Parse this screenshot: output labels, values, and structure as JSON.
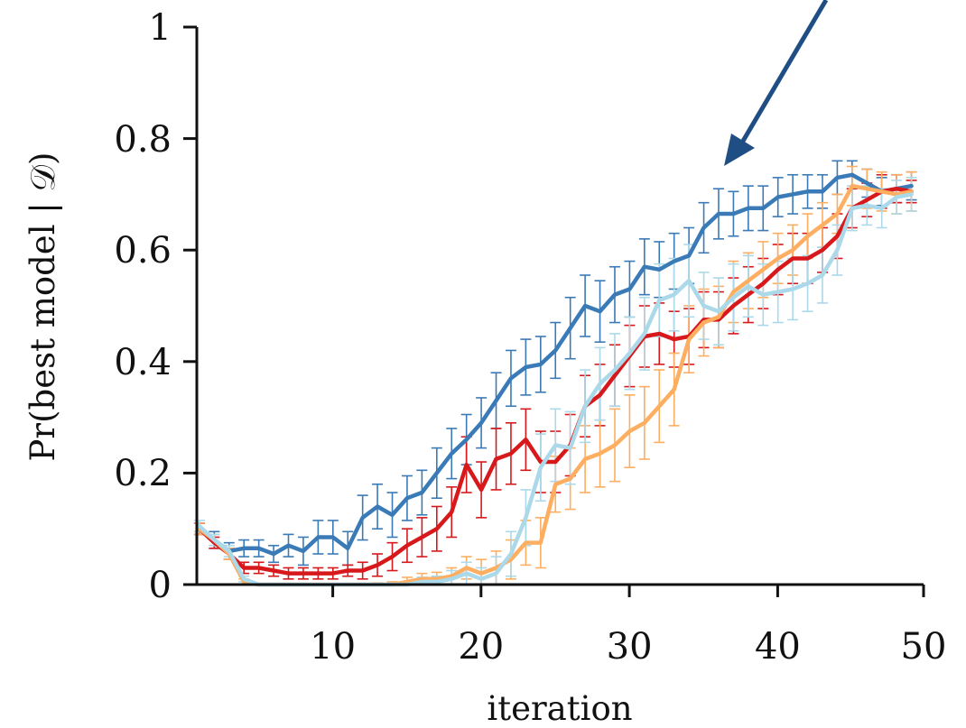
{
  "chart_data": {
    "type": "line",
    "title": "",
    "xlabel": "iteration",
    "ylabel": "Pr(best model | 𝒟)",
    "xlim": [
      1,
      50
    ],
    "ylim": [
      0,
      1
    ],
    "xticks": [
      10,
      20,
      30,
      40,
      50
    ],
    "xtick_labels": [
      "10",
      "20",
      "30",
      "40",
      "50"
    ],
    "yticks": [
      0,
      0.2,
      0.4,
      0.6,
      0.8,
      1
    ],
    "ytick_labels": [
      "0",
      "0.2",
      "0.4",
      "0.6",
      "0.8",
      "1"
    ],
    "grid": false,
    "legend": "none",
    "error_bars": true,
    "annotation": "arrow pointing at the dark blue curve near iteration 37",
    "x": [
      1,
      2,
      3,
      4,
      5,
      6,
      7,
      8,
      9,
      10,
      11,
      12,
      13,
      14,
      15,
      16,
      17,
      18,
      19,
      20,
      21,
      22,
      23,
      24,
      25,
      26,
      27,
      28,
      29,
      30,
      31,
      32,
      33,
      34,
      35,
      36,
      37,
      38,
      39,
      40,
      41,
      42,
      43,
      44,
      45,
      46,
      47,
      48,
      49
    ],
    "series": [
      {
        "color": "#3a7ab7",
        "values": [
          0.1,
          0.08,
          0.06,
          0.065,
          0.065,
          0.055,
          0.07,
          0.06,
          0.085,
          0.085,
          0.065,
          0.12,
          0.14,
          0.125,
          0.155,
          0.165,
          0.2,
          0.235,
          0.26,
          0.29,
          0.33,
          0.37,
          0.39,
          0.395,
          0.42,
          0.46,
          0.5,
          0.49,
          0.52,
          0.53,
          0.57,
          0.565,
          0.58,
          0.59,
          0.64,
          0.665,
          0.665,
          0.675,
          0.675,
          0.695,
          0.7,
          0.705,
          0.705,
          0.73,
          0.735,
          0.72,
          0.705,
          0.71,
          0.715
        ],
        "errors": [
          0.01,
          0.015,
          0.015,
          0.015,
          0.015,
          0.015,
          0.02,
          0.025,
          0.03,
          0.03,
          0.03,
          0.04,
          0.04,
          0.04,
          0.04,
          0.04,
          0.045,
          0.045,
          0.045,
          0.045,
          0.05,
          0.05,
          0.05,
          0.05,
          0.05,
          0.055,
          0.055,
          0.055,
          0.05,
          0.05,
          0.05,
          0.05,
          0.05,
          0.05,
          0.045,
          0.045,
          0.04,
          0.04,
          0.04,
          0.035,
          0.035,
          0.03,
          0.03,
          0.03,
          0.025,
          0.025,
          0.025,
          0.025,
          0.025
        ]
      },
      {
        "color": "#d7191c",
        "values": [
          0.1,
          0.075,
          0.055,
          0.03,
          0.03,
          0.025,
          0.02,
          0.02,
          0.02,
          0.02,
          0.025,
          0.025,
          0.035,
          0.05,
          0.07,
          0.085,
          0.1,
          0.13,
          0.215,
          0.17,
          0.225,
          0.235,
          0.26,
          0.22,
          0.22,
          0.25,
          0.32,
          0.34,
          0.375,
          0.41,
          0.445,
          0.45,
          0.44,
          0.445,
          0.475,
          0.475,
          0.5,
          0.52,
          0.54,
          0.565,
          0.585,
          0.585,
          0.6,
          0.625,
          0.675,
          0.69,
          0.705,
          0.71,
          0.705
        ],
        "errors": [
          0.01,
          0.01,
          0.01,
          0.01,
          0.01,
          0.01,
          0.01,
          0.01,
          0.01,
          0.01,
          0.01,
          0.015,
          0.02,
          0.025,
          0.03,
          0.035,
          0.04,
          0.045,
          0.05,
          0.05,
          0.055,
          0.055,
          0.055,
          0.055,
          0.055,
          0.055,
          0.055,
          0.055,
          0.055,
          0.055,
          0.055,
          0.055,
          0.05,
          0.05,
          0.05,
          0.05,
          0.05,
          0.05,
          0.045,
          0.045,
          0.045,
          0.045,
          0.04,
          0.04,
          0.035,
          0.03,
          0.03,
          0.025,
          0.02
        ]
      },
      {
        "color": "#fdae61",
        "values": [
          0.1,
          0.08,
          0.055,
          0.005,
          0.0,
          0.0,
          0.0,
          0.0,
          0.0,
          0.0,
          0.0,
          0.0,
          0.0,
          0.0,
          0.005,
          0.01,
          0.01,
          0.015,
          0.03,
          0.02,
          0.03,
          0.045,
          0.075,
          0.075,
          0.18,
          0.19,
          0.225,
          0.235,
          0.25,
          0.275,
          0.29,
          0.32,
          0.35,
          0.44,
          0.47,
          0.48,
          0.525,
          0.545,
          0.565,
          0.585,
          0.6,
          0.625,
          0.645,
          0.665,
          0.715,
          0.71,
          0.705,
          0.7,
          0.705
        ],
        "errors": [
          0.01,
          0.01,
          0.01,
          0.005,
          0.002,
          0.002,
          0.002,
          0.002,
          0.002,
          0.002,
          0.002,
          0.002,
          0.003,
          0.005,
          0.008,
          0.01,
          0.012,
          0.015,
          0.02,
          0.025,
          0.03,
          0.035,
          0.04,
          0.045,
          0.05,
          0.055,
          0.06,
          0.06,
          0.065,
          0.065,
          0.065,
          0.065,
          0.065,
          0.06,
          0.06,
          0.055,
          0.055,
          0.05,
          0.05,
          0.045,
          0.045,
          0.04,
          0.04,
          0.035,
          0.035,
          0.035,
          0.035,
          0.035,
          0.035
        ]
      },
      {
        "color": "#abd9e9",
        "values": [
          0.105,
          0.08,
          0.06,
          0.01,
          0.0,
          0.0,
          0.0,
          0.0,
          0.0,
          0.0,
          0.0,
          0.0,
          0.0,
          0.0,
          0.0,
          0.005,
          0.005,
          0.01,
          0.02,
          0.01,
          0.02,
          0.055,
          0.12,
          0.21,
          0.25,
          0.245,
          0.32,
          0.36,
          0.385,
          0.415,
          0.45,
          0.51,
          0.52,
          0.545,
          0.5,
          0.49,
          0.515,
          0.535,
          0.52,
          0.525,
          0.53,
          0.54,
          0.555,
          0.6,
          0.675,
          0.68,
          0.675,
          0.695,
          0.7
        ],
        "errors": [
          0.01,
          0.01,
          0.01,
          0.005,
          0.002,
          0.002,
          0.002,
          0.002,
          0.002,
          0.002,
          0.002,
          0.002,
          0.002,
          0.003,
          0.005,
          0.008,
          0.01,
          0.015,
          0.02,
          0.02,
          0.03,
          0.04,
          0.05,
          0.06,
          0.065,
          0.065,
          0.065,
          0.065,
          0.065,
          0.065,
          0.065,
          0.065,
          0.065,
          0.065,
          0.06,
          0.06,
          0.06,
          0.055,
          0.055,
          0.055,
          0.055,
          0.05,
          0.05,
          0.045,
          0.04,
          0.035,
          0.035,
          0.03,
          0.03
        ]
      }
    ]
  }
}
